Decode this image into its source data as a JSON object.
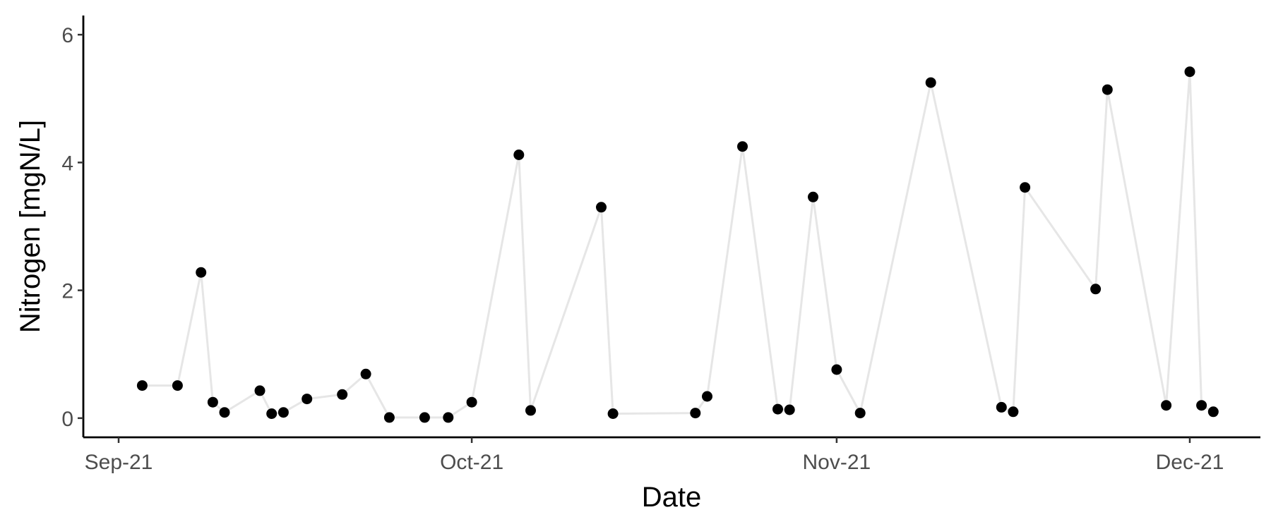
{
  "chart_data": {
    "type": "line",
    "title": "",
    "xlabel": "Date",
    "ylabel": "Nitrogen [mgN/L]",
    "x_scale": "date",
    "xlim": [
      "2021-08-29",
      "2021-12-07"
    ],
    "ylim": [
      -0.3,
      6.3
    ],
    "x_ticks": [
      {
        "date": "2021-09-01",
        "label": "Sep-21"
      },
      {
        "date": "2021-10-01",
        "label": "Oct-21"
      },
      {
        "date": "2021-11-01",
        "label": "Nov-21"
      },
      {
        "date": "2021-12-01",
        "label": "Dec-21"
      }
    ],
    "y_ticks": [
      {
        "value": 0,
        "label": "0"
      },
      {
        "value": 2,
        "label": "2"
      },
      {
        "value": 4,
        "label": "4"
      },
      {
        "value": 6,
        "label": "6"
      }
    ],
    "grid": false,
    "line_color": "#e6e6e6",
    "point_color": "#000000",
    "series": [
      {
        "x": [
          "2021-09-03",
          "2021-09-06",
          "2021-09-08",
          "2021-09-09",
          "2021-09-10",
          "2021-09-13",
          "2021-09-14",
          "2021-09-15",
          "2021-09-17",
          "2021-09-20",
          "2021-09-22",
          "2021-09-24",
          "2021-09-27",
          "2021-09-29",
          "2021-10-01",
          "2021-10-05",
          "2021-10-06",
          "2021-10-12",
          "2021-10-13",
          "2021-10-20",
          "2021-10-21",
          "2021-10-24",
          "2021-10-27",
          "2021-10-28",
          "2021-10-30",
          "2021-11-01",
          "2021-11-03",
          "2021-11-09",
          "2021-11-15",
          "2021-11-16",
          "2021-11-17",
          "2021-11-23",
          "2021-11-24",
          "2021-11-29",
          "2021-12-01",
          "2021-12-02",
          "2021-12-03"
        ],
        "y": [
          0.51,
          0.51,
          2.28,
          0.25,
          0.09,
          0.43,
          0.07,
          0.09,
          0.3,
          0.37,
          0.69,
          0.01,
          0.01,
          0.01,
          0.25,
          4.12,
          0.12,
          3.3,
          0.07,
          0.08,
          0.34,
          4.25,
          0.14,
          0.13,
          3.46,
          0.76,
          0.08,
          5.25,
          0.17,
          0.1,
          3.61,
          2.02,
          5.14,
          0.2,
          5.42,
          0.2,
          0.1
        ]
      }
    ]
  }
}
